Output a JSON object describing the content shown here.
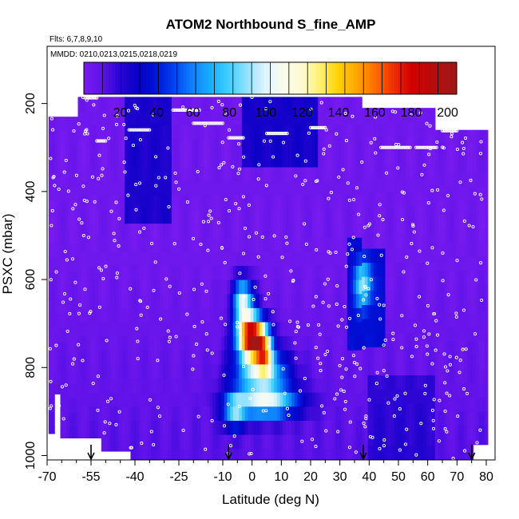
{
  "chart_data": {
    "type": "heatmap",
    "title": "ATOM2 Northbound S_fine_AMP",
    "annotations": {
      "flights": "Flts: 6,7,8,9,10",
      "dates": "MMDD: 0210,0213,0215,0218,0219"
    },
    "xlabel": "Latitude (deg N)",
    "ylabel": "PSXC (mbar)",
    "xlim": [
      -70,
      83
    ],
    "ylim": [
      1010,
      70
    ],
    "x_ticks": [
      -70,
      -55,
      -40,
      -25,
      -10,
      0,
      10,
      20,
      30,
      40,
      50,
      60,
      70,
      80
    ],
    "x_tick_labels": [
      "-70",
      "-55",
      "-40",
      "-25",
      "-10",
      "0",
      "10",
      "20",
      "30",
      "40",
      "50",
      "60",
      "70",
      "80"
    ],
    "x_minor_ticks": [
      -65,
      -60,
      -50,
      -45,
      -35,
      -30,
      -20,
      -15,
      -5,
      5,
      15,
      25,
      35,
      45,
      55,
      65,
      75
    ],
    "y_ticks": [
      200,
      400,
      600,
      800,
      1000
    ],
    "y_tick_labels": [
      "200",
      "400",
      "600",
      "800",
      "1000"
    ],
    "colorbar": {
      "range": [
        0,
        205
      ],
      "ticks": [
        20,
        40,
        60,
        80,
        100,
        120,
        140,
        160,
        180,
        200
      ],
      "tick_labels": [
        "20",
        "40",
        "60",
        "80",
        "100",
        "120",
        "140",
        "160",
        "180",
        "200"
      ],
      "colors": [
        "#7a1cf0",
        "#5a10e6",
        "#2a04d4",
        "#0a00c4",
        "#0014d8",
        "#0044ee",
        "#1080ff",
        "#18b0ff",
        "#40d0ff",
        "#a0e4ff",
        "#e8f6ff",
        "#fffae0",
        "#fff070",
        "#ffd000",
        "#ffa000",
        "#ff6a00",
        "#f03000",
        "#d00000",
        "#b01010",
        "#a01818"
      ]
    },
    "arrows_lat": [
      -55,
      -8,
      38,
      75
    ],
    "grid": false
  }
}
